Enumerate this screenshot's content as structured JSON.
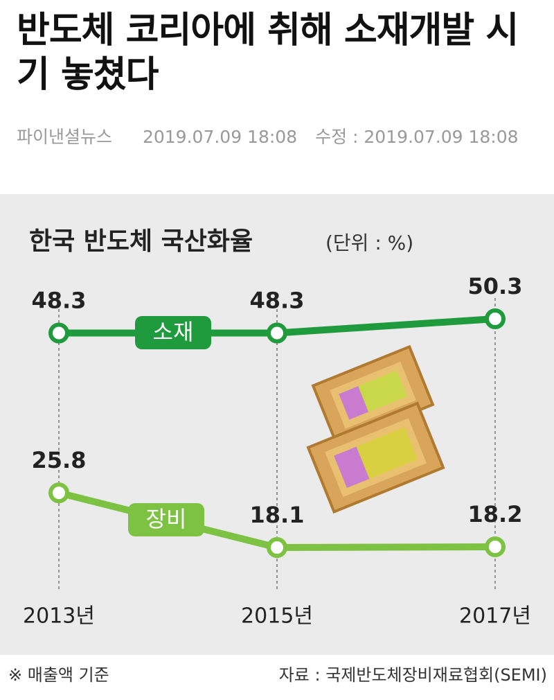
{
  "article": {
    "headline": "반도체 코리아에 취해 소재개발 시기 놓쳤다",
    "source": "파이낸셜뉴스",
    "date": "2019.07.09 18:08",
    "modified": "수정 : 2019.07.09 18:08"
  },
  "chart_data": {
    "type": "line",
    "title": "한국 반도체 국산화율",
    "subtitle": "(단위 : %)",
    "categories": [
      "2013년",
      "2015년",
      "2017년"
    ],
    "series": [
      {
        "name": "소재",
        "color": "#1f9a3c",
        "values": [
          48.3,
          48.3,
          50.3
        ]
      },
      {
        "name": "장비",
        "color": "#7dc242",
        "values": [
          25.8,
          18.1,
          18.2
        ]
      }
    ],
    "note": "※ 매출액 기준",
    "source": "자료 : 국제반도체장비재료협회(SEMI)"
  }
}
